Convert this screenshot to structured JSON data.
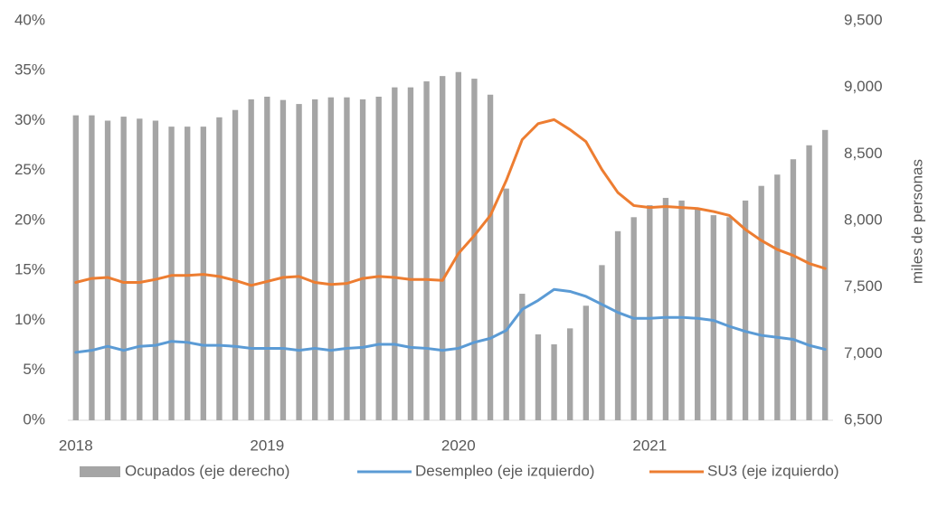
{
  "chart_data": {
    "type": "combo",
    "y2_title": "miles de personas",
    "categories": [
      "2018",
      null,
      null,
      null,
      null,
      null,
      null,
      null,
      null,
      null,
      null,
      null,
      "2019",
      null,
      null,
      null,
      null,
      null,
      null,
      null,
      null,
      null,
      null,
      null,
      "2020",
      null,
      null,
      null,
      null,
      null,
      null,
      null,
      null,
      null,
      null,
      null,
      "2021",
      null,
      null,
      null,
      null,
      null,
      null,
      null,
      null,
      null,
      null,
      null
    ],
    "ylim": [
      0,
      40
    ],
    "yticks": [
      {
        "value": 0,
        "label": "0%"
      },
      {
        "value": 5,
        "label": "5%"
      },
      {
        "value": 10,
        "label": "10%"
      },
      {
        "value": 15,
        "label": "15%"
      },
      {
        "value": 20,
        "label": "20%"
      },
      {
        "value": 25,
        "label": "25%"
      },
      {
        "value": 30,
        "label": "30%"
      },
      {
        "value": 35,
        "label": "35%"
      },
      {
        "value": 40,
        "label": "40%"
      }
    ],
    "y2lim": [
      6500,
      9500
    ],
    "y2ticks": [
      {
        "value": 6500,
        "label": "6,500"
      },
      {
        "value": 7000,
        "label": "7,000"
      },
      {
        "value": 7500,
        "label": "7,500"
      },
      {
        "value": 8000,
        "label": "8,000"
      },
      {
        "value": 8500,
        "label": "8,500"
      },
      {
        "value": 9000,
        "label": "9,000"
      },
      {
        "value": 9500,
        "label": "9,500"
      }
    ],
    "grid": false,
    "legend": "bottom",
    "series": [
      {
        "name": "Ocupados (eje derecho)",
        "type": "bar",
        "axis": "y2",
        "color": "#a5a5a5",
        "values": [
          8790,
          8790,
          8750,
          8780,
          8765,
          8750,
          8705,
          8705,
          8705,
          8775,
          8830,
          8910,
          8930,
          8905,
          8875,
          8910,
          8925,
          8925,
          8910,
          8930,
          9000,
          9000,
          9045,
          9085,
          9115,
          9065,
          8945,
          8240,
          7450,
          7145,
          7070,
          7190,
          7360,
          7665,
          7920,
          8025,
          8115,
          8170,
          8150,
          8090,
          8040,
          8025,
          8150,
          8260,
          8345,
          8460,
          8565,
          8680
        ]
      },
      {
        "name": "Desempleo (eje izquierdo)",
        "type": "line",
        "color": "#5b9bd5",
        "values": [
          6.8,
          7.0,
          7.4,
          7.0,
          7.4,
          7.5,
          7.9,
          7.8,
          7.5,
          7.5,
          7.4,
          7.2,
          7.2,
          7.2,
          7.0,
          7.2,
          7.0,
          7.2,
          7.3,
          7.6,
          7.6,
          7.3,
          7.2,
          7.0,
          7.2,
          7.8,
          8.2,
          9.0,
          11.1,
          12.0,
          13.1,
          12.9,
          12.4,
          11.6,
          10.8,
          10.2,
          10.2,
          10.3,
          10.3,
          10.2,
          10.0,
          9.4,
          8.9,
          8.5,
          8.3,
          8.1,
          7.5,
          7.1
        ]
      },
      {
        "name": "SU3 (eje izquierdo)",
        "type": "line",
        "color": "#ed7d31",
        "values": [
          13.8,
          14.2,
          14.3,
          13.8,
          13.8,
          14.1,
          14.5,
          14.5,
          14.6,
          14.4,
          14.0,
          13.5,
          13.9,
          14.3,
          14.4,
          13.8,
          13.6,
          13.7,
          14.2,
          14.4,
          14.3,
          14.1,
          14.1,
          14.0,
          16.7,
          18.5,
          20.5,
          24.0,
          28.1,
          29.7,
          30.1,
          29.1,
          27.9,
          25.1,
          22.8,
          21.5,
          21.3,
          21.4,
          21.3,
          21.2,
          20.9,
          20.5,
          19.1,
          18.0,
          17.1,
          16.5,
          15.7,
          15.2
        ]
      }
    ]
  }
}
